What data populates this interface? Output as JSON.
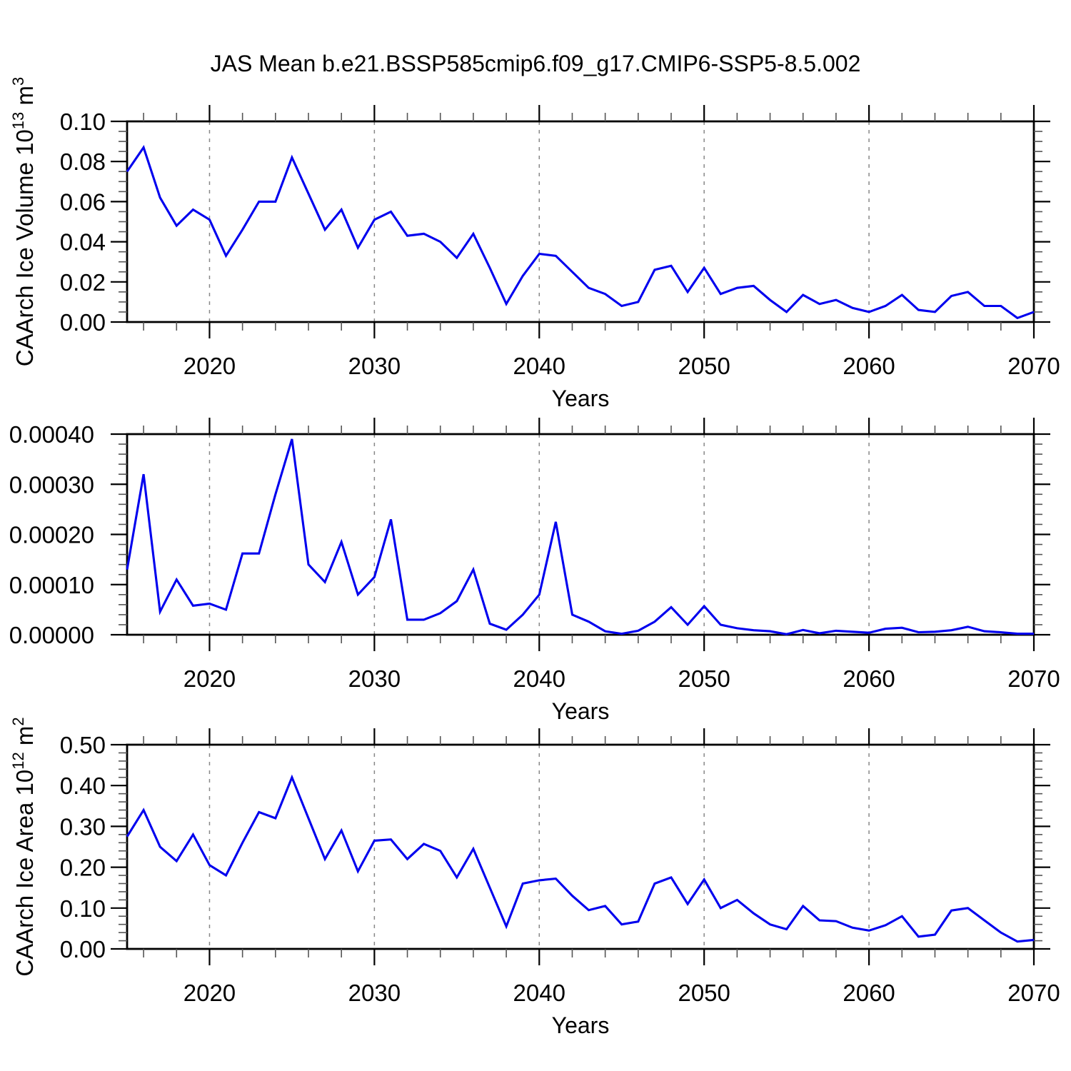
{
  "title": "JAS Mean b.e21.BSSP585cmip6.f09_g17.CMIP6-SSP5-8.5.002",
  "line_color": "#0000EE",
  "grid_color": "#888888",
  "axis_color": "#000000",
  "x_axis": {
    "label": "Years",
    "start_year": 2015,
    "end_year": 2070,
    "major_ticks": [
      2020,
      2030,
      2040,
      2050,
      2060,
      2070
    ],
    "minor_step": 2,
    "gridline_years": [
      2020,
      2030,
      2040,
      2050,
      2060
    ]
  },
  "chart_data": [
    {
      "type": "line",
      "name": "caarch-ice-volume",
      "ylabel_segments": [
        {
          "text": "CAArch Ice Volume 10"
        },
        {
          "text": "13",
          "sup": true
        },
        {
          "text": " m"
        },
        {
          "text": "3",
          "sup": true
        }
      ],
      "ylim": [
        0,
        0.1
      ],
      "ytick_values": [
        0,
        0.02,
        0.04,
        0.06,
        0.08,
        0.1
      ],
      "ytick_labels": [
        "0.00",
        "0.02",
        "0.04",
        "0.06",
        "0.08",
        "0.10"
      ],
      "yminor_step": 0.005,
      "x_start": 2015,
      "x_step": 1,
      "values": [
        0.075,
        0.087,
        0.062,
        0.048,
        0.056,
        0.051,
        0.033,
        0.046,
        0.06,
        0.06,
        0.082,
        0.064,
        0.046,
        0.056,
        0.037,
        0.051,
        0.055,
        0.043,
        0.044,
        0.04,
        0.032,
        0.044,
        0.027,
        0.009,
        0.023,
        0.034,
        0.033,
        0.025,
        0.017,
        0.014,
        0.008,
        0.01,
        0.026,
        0.028,
        0.015,
        0.027,
        0.014,
        0.017,
        0.018,
        0.011,
        0.005,
        0.0135,
        0.009,
        0.011,
        0.007,
        0.005,
        0.008,
        0.0135,
        0.006,
        0.005,
        0.013,
        0.015,
        0.008,
        0.008,
        0.002,
        0.005
      ]
    },
    {
      "type": "line",
      "name": "caarch-middle-series",
      "ylabel_segments": [],
      "ylim": [
        0,
        0.0004
      ],
      "ytick_values": [
        0,
        0.0001,
        0.0002,
        0.0003,
        0.0004
      ],
      "ytick_labels": [
        "0.00000",
        "0.00010",
        "0.00020",
        "0.00030",
        "0.00040"
      ],
      "yminor_step": 2e-05,
      "x_start": 2015,
      "x_step": 1,
      "values": [
        0.00013,
        0.00032,
        4.6e-05,
        0.00011,
        5.8e-05,
        6.2e-05,
        5e-05,
        0.000162,
        0.000162,
        0.00028,
        0.00039,
        0.00014,
        0.000105,
        0.000185,
        8e-05,
        0.000115,
        0.00023,
        3e-05,
        3e-05,
        4.3e-05,
        6.7e-05,
        0.00013,
        2.2e-05,
        1e-05,
        4e-05,
        8e-05,
        0.000225,
        4e-05,
        2.6e-05,
        7e-06,
        2e-06,
        8e-06,
        2.6e-05,
        5.5e-05,
        2e-05,
        5.7e-05,
        2e-05,
        1.3e-05,
        9e-06,
        7e-06,
        1e-06,
        9.5e-06,
        3e-06,
        8e-06,
        6e-06,
        4e-06,
        1.2e-05,
        1.4e-05,
        5e-06,
        6e-06,
        9e-06,
        1.6e-05,
        7e-06,
        5e-06,
        2e-06,
        2e-06
      ]
    },
    {
      "type": "line",
      "name": "caarch-ice-area",
      "ylabel_segments": [
        {
          "text": "CAArch Ice Area 10"
        },
        {
          "text": "12",
          "sup": true
        },
        {
          "text": " m"
        },
        {
          "text": "2",
          "sup": true
        }
      ],
      "ylim": [
        0,
        0.5
      ],
      "ytick_values": [
        0,
        0.1,
        0.2,
        0.3,
        0.4,
        0.5
      ],
      "ytick_labels": [
        "0.00",
        "0.10",
        "0.20",
        "0.30",
        "0.40",
        "0.50"
      ],
      "yminor_step": 0.02,
      "x_start": 2015,
      "x_step": 1,
      "values": [
        0.275,
        0.34,
        0.25,
        0.215,
        0.28,
        0.205,
        0.18,
        0.26,
        0.335,
        0.32,
        0.42,
        0.32,
        0.22,
        0.29,
        0.19,
        0.265,
        0.268,
        0.22,
        0.257,
        0.24,
        0.175,
        0.245,
        0.15,
        0.055,
        0.16,
        0.168,
        0.172,
        0.13,
        0.095,
        0.105,
        0.06,
        0.067,
        0.16,
        0.175,
        0.11,
        0.17,
        0.1,
        0.12,
        0.087,
        0.06,
        0.048,
        0.105,
        0.07,
        0.068,
        0.052,
        0.045,
        0.058,
        0.08,
        0.03,
        0.035,
        0.094,
        0.1,
        0.07,
        0.04,
        0.018,
        0.022
      ]
    }
  ]
}
